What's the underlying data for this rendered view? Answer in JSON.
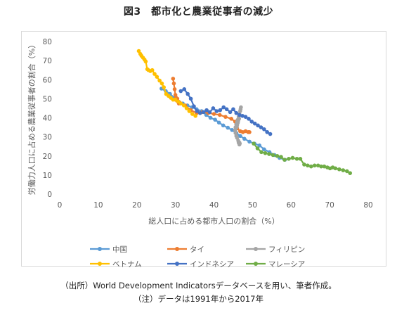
{
  "title": "図3　都市化と農業従事者の減少",
  "notes": {
    "source": "（出所）World Development Indicatorsデータベースを用い、筆者作成。",
    "period": "（注）データは1991年から2017年"
  },
  "colors": {
    "中国": "#5b9bd5",
    "タイ": "#ed7d31",
    "フィリピン": "#a5a5a5",
    "ベトナム": "#ffc000",
    "インドネシア": "#4472c4",
    "マレーシア": "#70ad47"
  },
  "chart_data": {
    "type": "line",
    "title": "図3　都市化と農業従事者の減少",
    "xlabel": "総人口に占める都市人口の割合（%）",
    "ylabel": "労働力人口に占める農業従事者の割合（%）",
    "xlim": [
      0,
      80
    ],
    "ylim": [
      0,
      80
    ],
    "xticks": [
      0,
      10,
      20,
      30,
      40,
      50,
      60,
      70,
      80
    ],
    "yticks": [
      0,
      10,
      20,
      30,
      40,
      50,
      60,
      70,
      80
    ],
    "grid": false,
    "legend_position": "bottom",
    "series": [
      {
        "name": "中国",
        "x": [
          26.4,
          27.5,
          28.6,
          29.7,
          30.8,
          31.9,
          33.1,
          34.3,
          35.5,
          36.8,
          38.0,
          39.1,
          40.3,
          41.3,
          42.4,
          43.6,
          44.7,
          45.8,
          46.8,
          47.9,
          49.2,
          50.5,
          51.8,
          53.0,
          54.4,
          55.7,
          57.0,
          58.4
        ],
        "y": [
          55.3,
          54.0,
          52.5,
          50.5,
          48.5,
          47.5,
          46.5,
          45.5,
          44.5,
          43.5,
          41.5,
          40.0,
          39.0,
          37.5,
          36.0,
          34.8,
          33.6,
          32.0,
          30.5,
          29.0,
          27.5,
          26.5,
          25.5,
          23.5,
          22.0,
          20.5,
          19.0,
          18.0
        ]
      },
      {
        "name": "タイ",
        "x": [
          29.4,
          29.6,
          29.8,
          30.0,
          30.2,
          30.4,
          30.5,
          30.7,
          30.9,
          31.1,
          32.5,
          34.0,
          35.5,
          37.0,
          38.5,
          40.0,
          41.5,
          43.0,
          44.5,
          45.5,
          46.0,
          46.8,
          47.5,
          48.2,
          48.9,
          49.2
        ],
        "y": [
          60.5,
          58.0,
          55.0,
          52.0,
          50.5,
          49.0,
          50.0,
          48.5,
          47.5,
          48.0,
          46.5,
          44.0,
          42.5,
          43.0,
          42.5,
          42.0,
          41.5,
          40.5,
          39.5,
          38.0,
          34.5,
          33.0,
          32.5,
          33.0,
          32.5,
          32.5
        ]
      },
      {
        "name": "フィリピン",
        "x": [
          47.0,
          46.9,
          46.8,
          46.6,
          46.4,
          46.2,
          46.0,
          45.8,
          45.8,
          45.9,
          46.0,
          46.1,
          46.2,
          46.3,
          46.5,
          46.0,
          45.8,
          45.6,
          45.5,
          45.6,
          45.8,
          46.0,
          46.3,
          46.4,
          46.6,
          46.6,
          46.7
        ],
        "y": [
          45.5,
          44.5,
          43.5,
          42.0,
          40.5,
          39.0,
          37.5,
          36.5,
          35.5,
          35.0,
          36.0,
          37.0,
          37.5,
          38.5,
          39.5,
          38.0,
          36.5,
          35.0,
          33.5,
          32.0,
          30.5,
          29.5,
          28.0,
          27.0,
          26.0,
          27.0,
          26.5
        ]
      },
      {
        "name": "ベトナム",
        "x": [
          20.5,
          20.9,
          21.2,
          21.6,
          22.0,
          22.3,
          22.7,
          23.0,
          23.5,
          24.0,
          24.6,
          25.2,
          25.9,
          26.5,
          27.0,
          27.6,
          28.2,
          28.8,
          29.4,
          30.0,
          30.7,
          31.4,
          32.2,
          32.9,
          33.6,
          34.4,
          35.2
        ],
        "y": [
          75.0,
          73.5,
          72.5,
          71.5,
          70.5,
          69.5,
          65.5,
          65.0,
          64.5,
          65.0,
          63.0,
          61.5,
          59.5,
          58.0,
          56.0,
          52.5,
          51.5,
          50.5,
          49.5,
          49.5,
          48.5,
          47.5,
          46.5,
          45.0,
          43.5,
          42.0,
          41.0
        ]
      },
      {
        "name": "インドネシア",
        "x": [
          31.4,
          32.3,
          33.2,
          34.0,
          34.8,
          35.6,
          36.4,
          37.3,
          38.1,
          38.9,
          39.8,
          40.7,
          41.6,
          42.5,
          43.3,
          44.2,
          45.0,
          45.8,
          46.6,
          47.4,
          48.2,
          49.0,
          49.8,
          50.6,
          51.4,
          52.2,
          53.0,
          53.8,
          54.6
        ],
        "y": [
          54.0,
          55.0,
          52.5,
          50.0,
          46.0,
          43.5,
          42.5,
          43.0,
          44.0,
          43.0,
          45.0,
          43.5,
          44.0,
          45.5,
          44.5,
          43.0,
          44.5,
          42.5,
          41.5,
          41.0,
          40.5,
          39.5,
          38.0,
          37.0,
          36.0,
          35.0,
          34.0,
          32.5,
          31.5
        ]
      },
      {
        "name": "マレーシア",
        "x": [
          50.3,
          51.3,
          52.3,
          53.3,
          54.3,
          55.3,
          56.4,
          57.4,
          58.3,
          59.4,
          60.4,
          61.5,
          62.4,
          63.4,
          64.3,
          65.2,
          66.1,
          67.0,
          67.8,
          68.6,
          69.4,
          70.1,
          70.8,
          71.5,
          72.5,
          73.5,
          74.5,
          75.3
        ],
        "y": [
          26.5,
          24.0,
          22.0,
          21.5,
          21.0,
          20.5,
          20.0,
          19.5,
          18.0,
          18.5,
          19.0,
          18.5,
          18.5,
          15.5,
          15.0,
          14.5,
          15.0,
          15.0,
          14.5,
          14.5,
          14.0,
          13.5,
          14.0,
          13.5,
          13.0,
          12.5,
          12.0,
          11.0
        ]
      }
    ]
  }
}
